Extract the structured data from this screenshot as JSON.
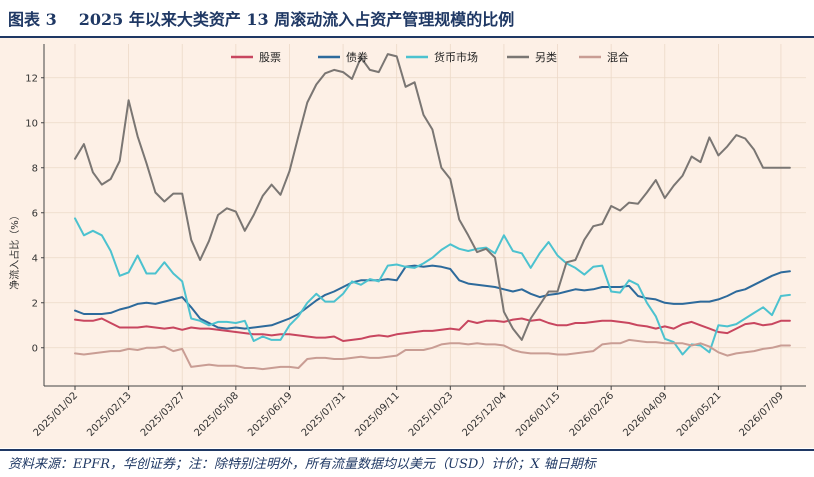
{
  "header": {
    "figure_label": "图表 3",
    "title": "2025 年以来大类资产 13 周滚动流入占资产管理规模的比例"
  },
  "source_note": "资料来源：EPFR，华创证券；注：除特别注明外，所有流量数据均以美元（USD）计价；X 轴日期标",
  "colors": {
    "background": "#fdf0e6",
    "accent": "#1f3864",
    "grid": "#ecd9c8"
  },
  "chart_data": {
    "type": "line",
    "title": "",
    "xlabel": "",
    "ylabel": "净流入占比（%）",
    "ylim": [
      -1.7,
      13.5
    ],
    "yticks": [
      0,
      2,
      4,
      6,
      8,
      10,
      12
    ],
    "x": [
      "2025/01/02",
      "2025/01/09",
      "2025/01/16",
      "2025/01/23",
      "2025/01/30",
      "2025/02/06",
      "2025/02/13",
      "2025/02/20",
      "2025/02/27",
      "2025/03/06",
      "2025/03/13",
      "2025/03/20",
      "2025/03/27",
      "2025/04/03",
      "2025/04/10",
      "2025/04/17",
      "2025/04/24",
      "2025/05/01",
      "2025/05/08",
      "2025/05/15",
      "2025/05/22",
      "2025/05/29",
      "2025/06/05",
      "2025/06/12",
      "2025/06/19",
      "2025/06/26",
      "2025/07/03",
      "2025/07/10",
      "2025/07/17",
      "2025/07/24",
      "2025/07/31",
      "2025/08/07",
      "2025/08/14",
      "2025/08/21",
      "2025/08/28",
      "2025/09/04",
      "2025/09/11",
      "2025/09/18",
      "2025/09/25",
      "2025/10/02",
      "2025/10/09",
      "2025/10/16",
      "2025/10/23",
      "2025/10/30",
      "2025/11/06",
      "2025/11/13",
      "2025/11/20",
      "2025/11/27",
      "2025/12/04",
      "2025/12/11",
      "2025/12/18",
      "2025/12/25",
      "2026/01/01",
      "2026/01/08",
      "2026/01/15",
      "2026/01/22",
      "2026/01/29",
      "2026/02/05",
      "2026/02/12",
      "2026/02/19",
      "2026/02/26",
      "2026/03/05",
      "2026/03/12",
      "2026/03/19",
      "2026/03/26",
      "2026/04/02",
      "2026/04/09",
      "2026/04/16",
      "2026/04/23",
      "2026/04/30",
      "2026/05/07",
      "2026/05/14",
      "2026/05/21",
      "2026/05/28",
      "2026/06/04",
      "2026/06/11",
      "2026/06/18",
      "2026/06/25",
      "2026/07/02",
      "2026/07/09",
      "2026/07/16"
    ],
    "xtick_labels": [
      "2025/01/02",
      "2025/02/13",
      "2025/03/27",
      "2025/05/08",
      "2025/06/19",
      "2025/07/31",
      "2025/09/11",
      "2025/10/23",
      "2025/12/04",
      "2026/01/15",
      "2026/02/26",
      "2026/04/09",
      "2026/05/21",
      "2026/07/09"
    ],
    "legend_position": "top-center",
    "series": [
      {
        "name": "股票",
        "color": "#c8465f",
        "values": [
          1.25,
          1.2,
          1.2,
          1.3,
          1.1,
          0.9,
          0.9,
          0.9,
          0.95,
          0.9,
          0.85,
          0.9,
          0.8,
          0.9,
          0.85,
          0.85,
          0.8,
          0.75,
          0.7,
          0.65,
          0.6,
          0.6,
          0.55,
          0.6,
          0.6,
          0.55,
          0.5,
          0.45,
          0.45,
          0.5,
          0.3,
          0.35,
          0.4,
          0.5,
          0.55,
          0.5,
          0.6,
          0.65,
          0.7,
          0.75,
          0.75,
          0.8,
          0.85,
          0.8,
          1.2,
          1.1,
          1.2,
          1.2,
          1.15,
          1.25,
          1.3,
          1.2,
          1.25,
          1.1,
          1.0,
          1.0,
          1.1,
          1.1,
          1.15,
          1.2,
          1.2,
          1.15,
          1.1,
          1.0,
          0.95,
          0.85,
          0.95,
          0.85,
          1.05,
          1.15,
          1.0,
          0.85,
          0.7,
          0.65,
          0.85,
          1.05,
          1.1,
          1.0,
          1.05,
          1.2,
          1.2
        ]
      },
      {
        "name": "债券",
        "color": "#2d6a9b",
        "values": [
          1.65,
          1.5,
          1.5,
          1.5,
          1.55,
          1.7,
          1.8,
          1.95,
          2.0,
          1.95,
          2.05,
          2.15,
          2.25,
          1.8,
          1.3,
          1.1,
          0.9,
          0.85,
          0.9,
          0.85,
          0.9,
          0.95,
          1.0,
          1.15,
          1.3,
          1.5,
          1.8,
          2.1,
          2.35,
          2.5,
          2.7,
          2.9,
          3.0,
          3.0,
          3.0,
          3.05,
          3.0,
          3.6,
          3.65,
          3.6,
          3.65,
          3.6,
          3.5,
          3.0,
          2.85,
          2.8,
          2.75,
          2.7,
          2.6,
          2.5,
          2.6,
          2.4,
          2.25,
          2.35,
          2.4,
          2.5,
          2.6,
          2.55,
          2.6,
          2.7,
          2.7,
          2.7,
          2.75,
          2.3,
          2.2,
          2.15,
          2.0,
          1.95,
          1.95,
          2.0,
          2.05,
          2.05,
          2.15,
          2.3,
          2.5,
          2.6,
          2.8,
          3.0,
          3.2,
          3.35,
          3.4
        ]
      },
      {
        "name": "货币市场",
        "color": "#4cc2cf",
        "values": [
          5.75,
          5.0,
          5.2,
          5.0,
          4.3,
          3.2,
          3.35,
          4.1,
          3.3,
          3.3,
          3.8,
          3.3,
          2.95,
          1.3,
          1.2,
          1.0,
          1.15,
          1.15,
          1.1,
          1.2,
          0.3,
          0.5,
          0.35,
          0.35,
          1.0,
          1.4,
          2.0,
          2.4,
          2.05,
          2.05,
          2.4,
          2.95,
          2.8,
          3.05,
          2.95,
          3.65,
          3.7,
          3.6,
          3.55,
          3.75,
          4.0,
          4.35,
          4.6,
          4.4,
          4.3,
          4.4,
          4.45,
          4.2,
          5.0,
          4.3,
          4.2,
          3.55,
          4.2,
          4.7,
          4.1,
          3.75,
          3.55,
          3.25,
          3.6,
          3.65,
          2.5,
          2.45,
          3.0,
          2.8,
          2.0,
          1.4,
          0.4,
          0.25,
          -0.3,
          0.15,
          0.1,
          -0.2,
          1.0,
          0.95,
          1.05,
          1.3,
          1.55,
          1.8,
          1.45,
          2.3,
          2.35
        ]
      },
      {
        "name": "另类",
        "color": "#7a7673",
        "values": [
          8.4,
          9.05,
          7.8,
          7.25,
          7.5,
          8.3,
          11.0,
          9.4,
          8.2,
          6.9,
          6.5,
          6.85,
          6.85,
          4.8,
          3.9,
          4.75,
          5.9,
          6.2,
          6.05,
          5.2,
          5.9,
          6.75,
          7.25,
          6.8,
          7.85,
          9.4,
          10.9,
          11.7,
          12.2,
          12.35,
          12.25,
          11.95,
          12.9,
          12.35,
          12.25,
          13.05,
          12.95,
          11.6,
          11.8,
          10.35,
          9.7,
          8.0,
          7.5,
          5.7,
          5.0,
          4.25,
          4.4,
          4.0,
          1.6,
          0.85,
          0.35,
          1.3,
          1.9,
          2.5,
          2.5,
          3.8,
          3.9,
          4.8,
          5.4,
          5.5,
          6.3,
          6.1,
          6.45,
          6.4,
          6.9,
          7.45,
          6.65,
          7.2,
          7.65,
          8.5,
          8.25,
          9.35,
          8.55,
          8.95,
          9.45,
          9.3,
          8.8,
          8.0,
          8.0,
          8.0,
          8.0
        ]
      },
      {
        "name": "混合",
        "color": "#c99d94",
        "values": [
          -0.25,
          -0.3,
          -0.25,
          -0.2,
          -0.15,
          -0.15,
          -0.05,
          -0.1,
          0.0,
          0.0,
          0.05,
          -0.15,
          -0.05,
          -0.85,
          -0.8,
          -0.75,
          -0.8,
          -0.8,
          -0.8,
          -0.9,
          -0.9,
          -0.95,
          -0.9,
          -0.85,
          -0.85,
          -0.9,
          -0.5,
          -0.45,
          -0.45,
          -0.5,
          -0.5,
          -0.45,
          -0.4,
          -0.45,
          -0.45,
          -0.4,
          -0.35,
          -0.1,
          -0.1,
          -0.1,
          0.0,
          0.15,
          0.2,
          0.2,
          0.15,
          0.2,
          0.15,
          0.15,
          0.1,
          -0.1,
          -0.2,
          -0.25,
          -0.25,
          -0.25,
          -0.3,
          -0.3,
          -0.25,
          -0.2,
          -0.15,
          0.15,
          0.2,
          0.2,
          0.35,
          0.3,
          0.25,
          0.25,
          0.2,
          0.2,
          0.2,
          0.1,
          0.2,
          0.05,
          -0.2,
          -0.35,
          -0.25,
          -0.2,
          -0.15,
          -0.05,
          0.0,
          0.1,
          0.1
        ]
      }
    ]
  }
}
